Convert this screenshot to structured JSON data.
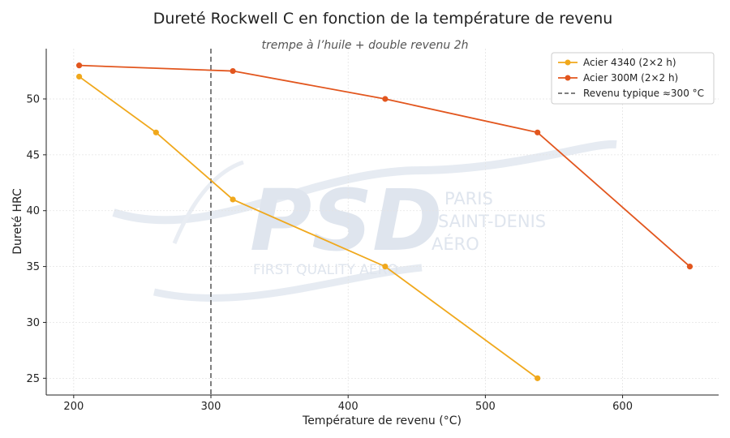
{
  "chart_data": {
    "type": "line",
    "title": "Dureté Rockwell C en fonction de la température de revenu",
    "subtitle": "trempe à l’huile + double revenu 2h",
    "xlabel": "Température de revenu (°C)",
    "ylabel": "Dureté HRC",
    "xlim": [
      180,
      670
    ],
    "ylim": [
      23.5,
      54.5
    ],
    "xticks": [
      200,
      300,
      400,
      500,
      600
    ],
    "yticks": [
      25,
      30,
      35,
      40,
      45,
      50
    ],
    "grid": true,
    "legend_position": "top-right",
    "series": [
      {
        "name": "Acier 4340 (2×2 h)",
        "color": "#f0a81c",
        "x": [
          204,
          260,
          316,
          427,
          538
        ],
        "y": [
          52,
          47,
          41,
          35,
          25
        ]
      },
      {
        "name": "Acier 300M (2×2 h)",
        "color": "#e2561e",
        "x": [
          204,
          316,
          427,
          538,
          649
        ],
        "y": [
          53,
          52.5,
          50,
          47,
          35
        ]
      }
    ],
    "reference_lines": [
      {
        "name": "Revenu typique ≈300 °C",
        "x": 300,
        "color": "#555555",
        "style": "dashed"
      }
    ]
  },
  "watermark": {
    "logo": "PSD",
    "lines": [
      "PARIS",
      "SAINT-DENIS",
      "AÉRO"
    ],
    "tagline": "FIRST QUALITY AERO"
  }
}
